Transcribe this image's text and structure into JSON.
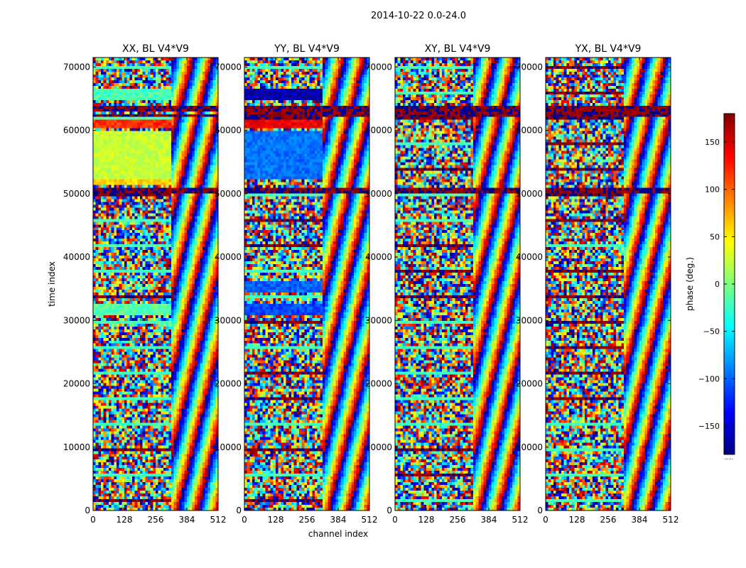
{
  "chart_data": {
    "type": "heatmap",
    "suptitle": "2014-10-22 0.0-24.0",
    "xlabel": "channel index",
    "ylabel": "time index",
    "xlim": [
      0,
      512
    ],
    "ylim": [
      0,
      71500
    ],
    "x_ticks": [
      0,
      128,
      256,
      384,
      512
    ],
    "x_tick_labels": [
      "0",
      "128",
      "256",
      "384",
      "512"
    ],
    "y_ticks": [
      0,
      10000,
      20000,
      30000,
      40000,
      50000,
      60000,
      70000
    ],
    "y_tick_labels": [
      "0",
      "10000",
      "20000",
      "30000",
      "40000",
      "50000",
      "60000",
      "70000"
    ],
    "panels": [
      {
        "title": "XX, BL V4*V9",
        "bands": [
          {
            "t0": 63000,
            "t1": 64000,
            "phase": 178
          },
          {
            "t0": 62000,
            "t1": 62600,
            "phase": 178
          },
          {
            "t0": 60500,
            "t1": 61800,
            "phase": 120
          },
          {
            "t0": 52500,
            "t1": 60000,
            "phase": 25
          },
          {
            "t0": 50200,
            "t1": 51000,
            "phase": 178
          },
          {
            "t0": 51500,
            "t1": 52300,
            "phase": 60
          },
          {
            "t0": 31000,
            "t1": 32500,
            "phase": -15
          },
          {
            "t0": 65000,
            "t1": 66500,
            "phase": -20
          }
        ]
      },
      {
        "title": "YY, BL V4*V9",
        "bands": [
          {
            "t0": 63000,
            "t1": 64000,
            "phase": 178
          },
          {
            "t0": 62000,
            "t1": 62800,
            "phase": 178
          },
          {
            "t0": 60500,
            "t1": 61800,
            "phase": 140
          },
          {
            "t0": 52500,
            "t1": 60000,
            "phase": -95
          },
          {
            "t0": 50200,
            "t1": 51000,
            "phase": 178
          },
          {
            "t0": 64800,
            "t1": 66500,
            "phase": -165
          },
          {
            "t0": 31000,
            "t1": 32500,
            "phase": -110
          },
          {
            "t0": 34500,
            "t1": 36000,
            "phase": -100
          }
        ]
      },
      {
        "title": "XY, BL V4*V9",
        "bands": [
          {
            "t0": 63000,
            "t1": 64000,
            "phase": 178
          },
          {
            "t0": 62200,
            "t1": 62800,
            "phase": 178
          },
          {
            "t0": 50200,
            "t1": 51000,
            "phase": 178
          }
        ]
      },
      {
        "title": "YX, BL V4*V9",
        "bands": [
          {
            "t0": 63000,
            "t1": 64000,
            "phase": 178
          },
          {
            "t0": 62200,
            "t1": 62800,
            "phase": 178
          },
          {
            "t0": 50200,
            "t1": 51000,
            "phase": 178
          }
        ]
      }
    ],
    "colorbar": {
      "label": "phase (deg.)",
      "min": -180,
      "max": 180,
      "ticks": [
        150,
        100,
        50,
        0,
        -50,
        -100,
        -150
      ],
      "tick_labels": [
        "150",
        "100",
        "50",
        "0",
        "−50",
        "−100",
        "−150"
      ],
      "colormap": "jet",
      "colors": [
        "#00007f",
        "#0000ff",
        "#007fff",
        "#00ffff",
        "#7fff7f",
        "#ffff00",
        "#ff7f00",
        "#ff0000",
        "#7f0000"
      ],
      "below_mark": "....."
    }
  }
}
